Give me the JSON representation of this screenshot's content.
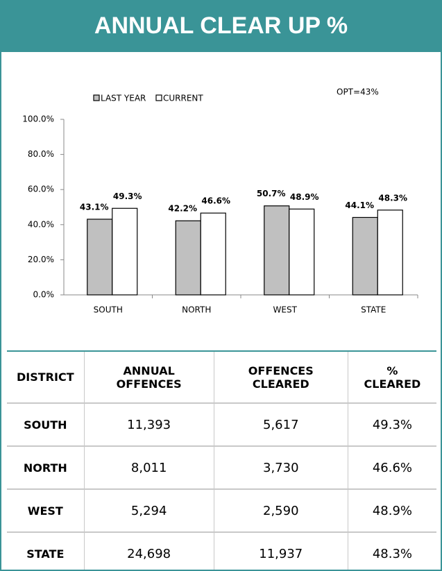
{
  "header": {
    "title": "ANNUAL CLEAR UP %"
  },
  "chart_data": {
    "type": "bar",
    "categories": [
      "SOUTH",
      "NORTH",
      "WEST",
      "STATE"
    ],
    "series": [
      {
        "name": "LAST YEAR",
        "color": "#c0c0c0",
        "values": [
          43.1,
          42.2,
          50.7,
          44.1
        ],
        "value_labels": [
          "43.1%",
          "42.2%",
          "50.7%",
          "44.1%"
        ]
      },
      {
        "name": "CURRENT",
        "color": "#ffffff",
        "values": [
          49.3,
          46.6,
          48.9,
          48.3
        ],
        "value_labels": [
          "49.3%",
          "46.6%",
          "48.9%",
          "48.3%"
        ]
      }
    ],
    "annotation": "OPT=43%",
    "ylim": [
      0,
      100
    ],
    "yticks": [
      {
        "value": 0,
        "label": "0.0%"
      },
      {
        "value": 20,
        "label": "20.0%"
      },
      {
        "value": 40,
        "label": "40.0%"
      },
      {
        "value": 60,
        "label": "60.0%"
      },
      {
        "value": 80,
        "label": "80.0%"
      },
      {
        "value": 100,
        "label": "100.0%"
      }
    ],
    "grid": false
  },
  "table": {
    "header": [
      "DISTRICT",
      "ANNUAL OFFENCES",
      "OFFENCES CLEARED",
      "% CLEARED"
    ],
    "rows": [
      [
        "SOUTH",
        "11,393",
        "5,617",
        "49.3%"
      ],
      [
        "NORTH",
        "8,011",
        "3,730",
        "46.6%"
      ],
      [
        "WEST",
        "5,294",
        "2,590",
        "48.9%"
      ],
      [
        "STATE",
        "24,698",
        "11,937",
        "48.3%"
      ]
    ]
  }
}
